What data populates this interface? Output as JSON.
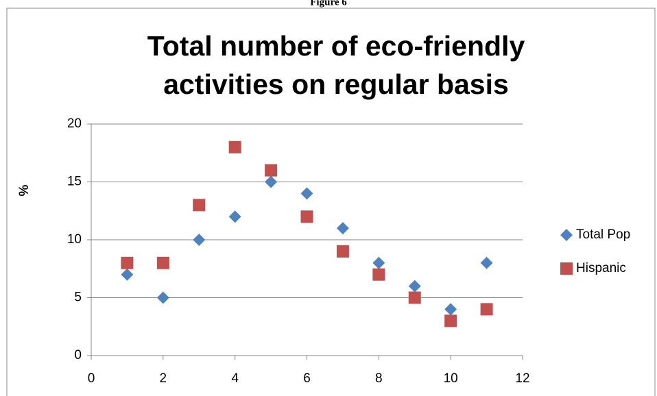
{
  "figure_label": "Figure 6",
  "chart_data": {
    "type": "scatter",
    "title": [
      "Total number of eco-friendly",
      "activities on regular basis"
    ],
    "y_label": "%",
    "xlim": [
      0,
      12
    ],
    "xticks": [
      0,
      2,
      4,
      6,
      8,
      10,
      12
    ],
    "ylim": [
      0,
      20
    ],
    "yticks": [
      0,
      5,
      10,
      15,
      20
    ],
    "grid": true,
    "legend": "right",
    "series": [
      {
        "name": "Total Pop",
        "color": "#4f81bd",
        "marker": "diamond",
        "x": [
          1,
          2,
          3,
          4,
          5,
          6,
          7,
          8,
          9,
          10,
          11
        ],
        "values": [
          7,
          5,
          10,
          12,
          15,
          14,
          11,
          8,
          6,
          4,
          8
        ]
      },
      {
        "name": "Hispanic",
        "color": "#c0504d",
        "marker": "square",
        "x": [
          1,
          2,
          3,
          4,
          5,
          6,
          7,
          8,
          9,
          10,
          11
        ],
        "values": [
          8,
          8,
          13,
          18,
          16,
          12,
          9,
          7,
          5,
          3,
          4
        ]
      }
    ]
  }
}
